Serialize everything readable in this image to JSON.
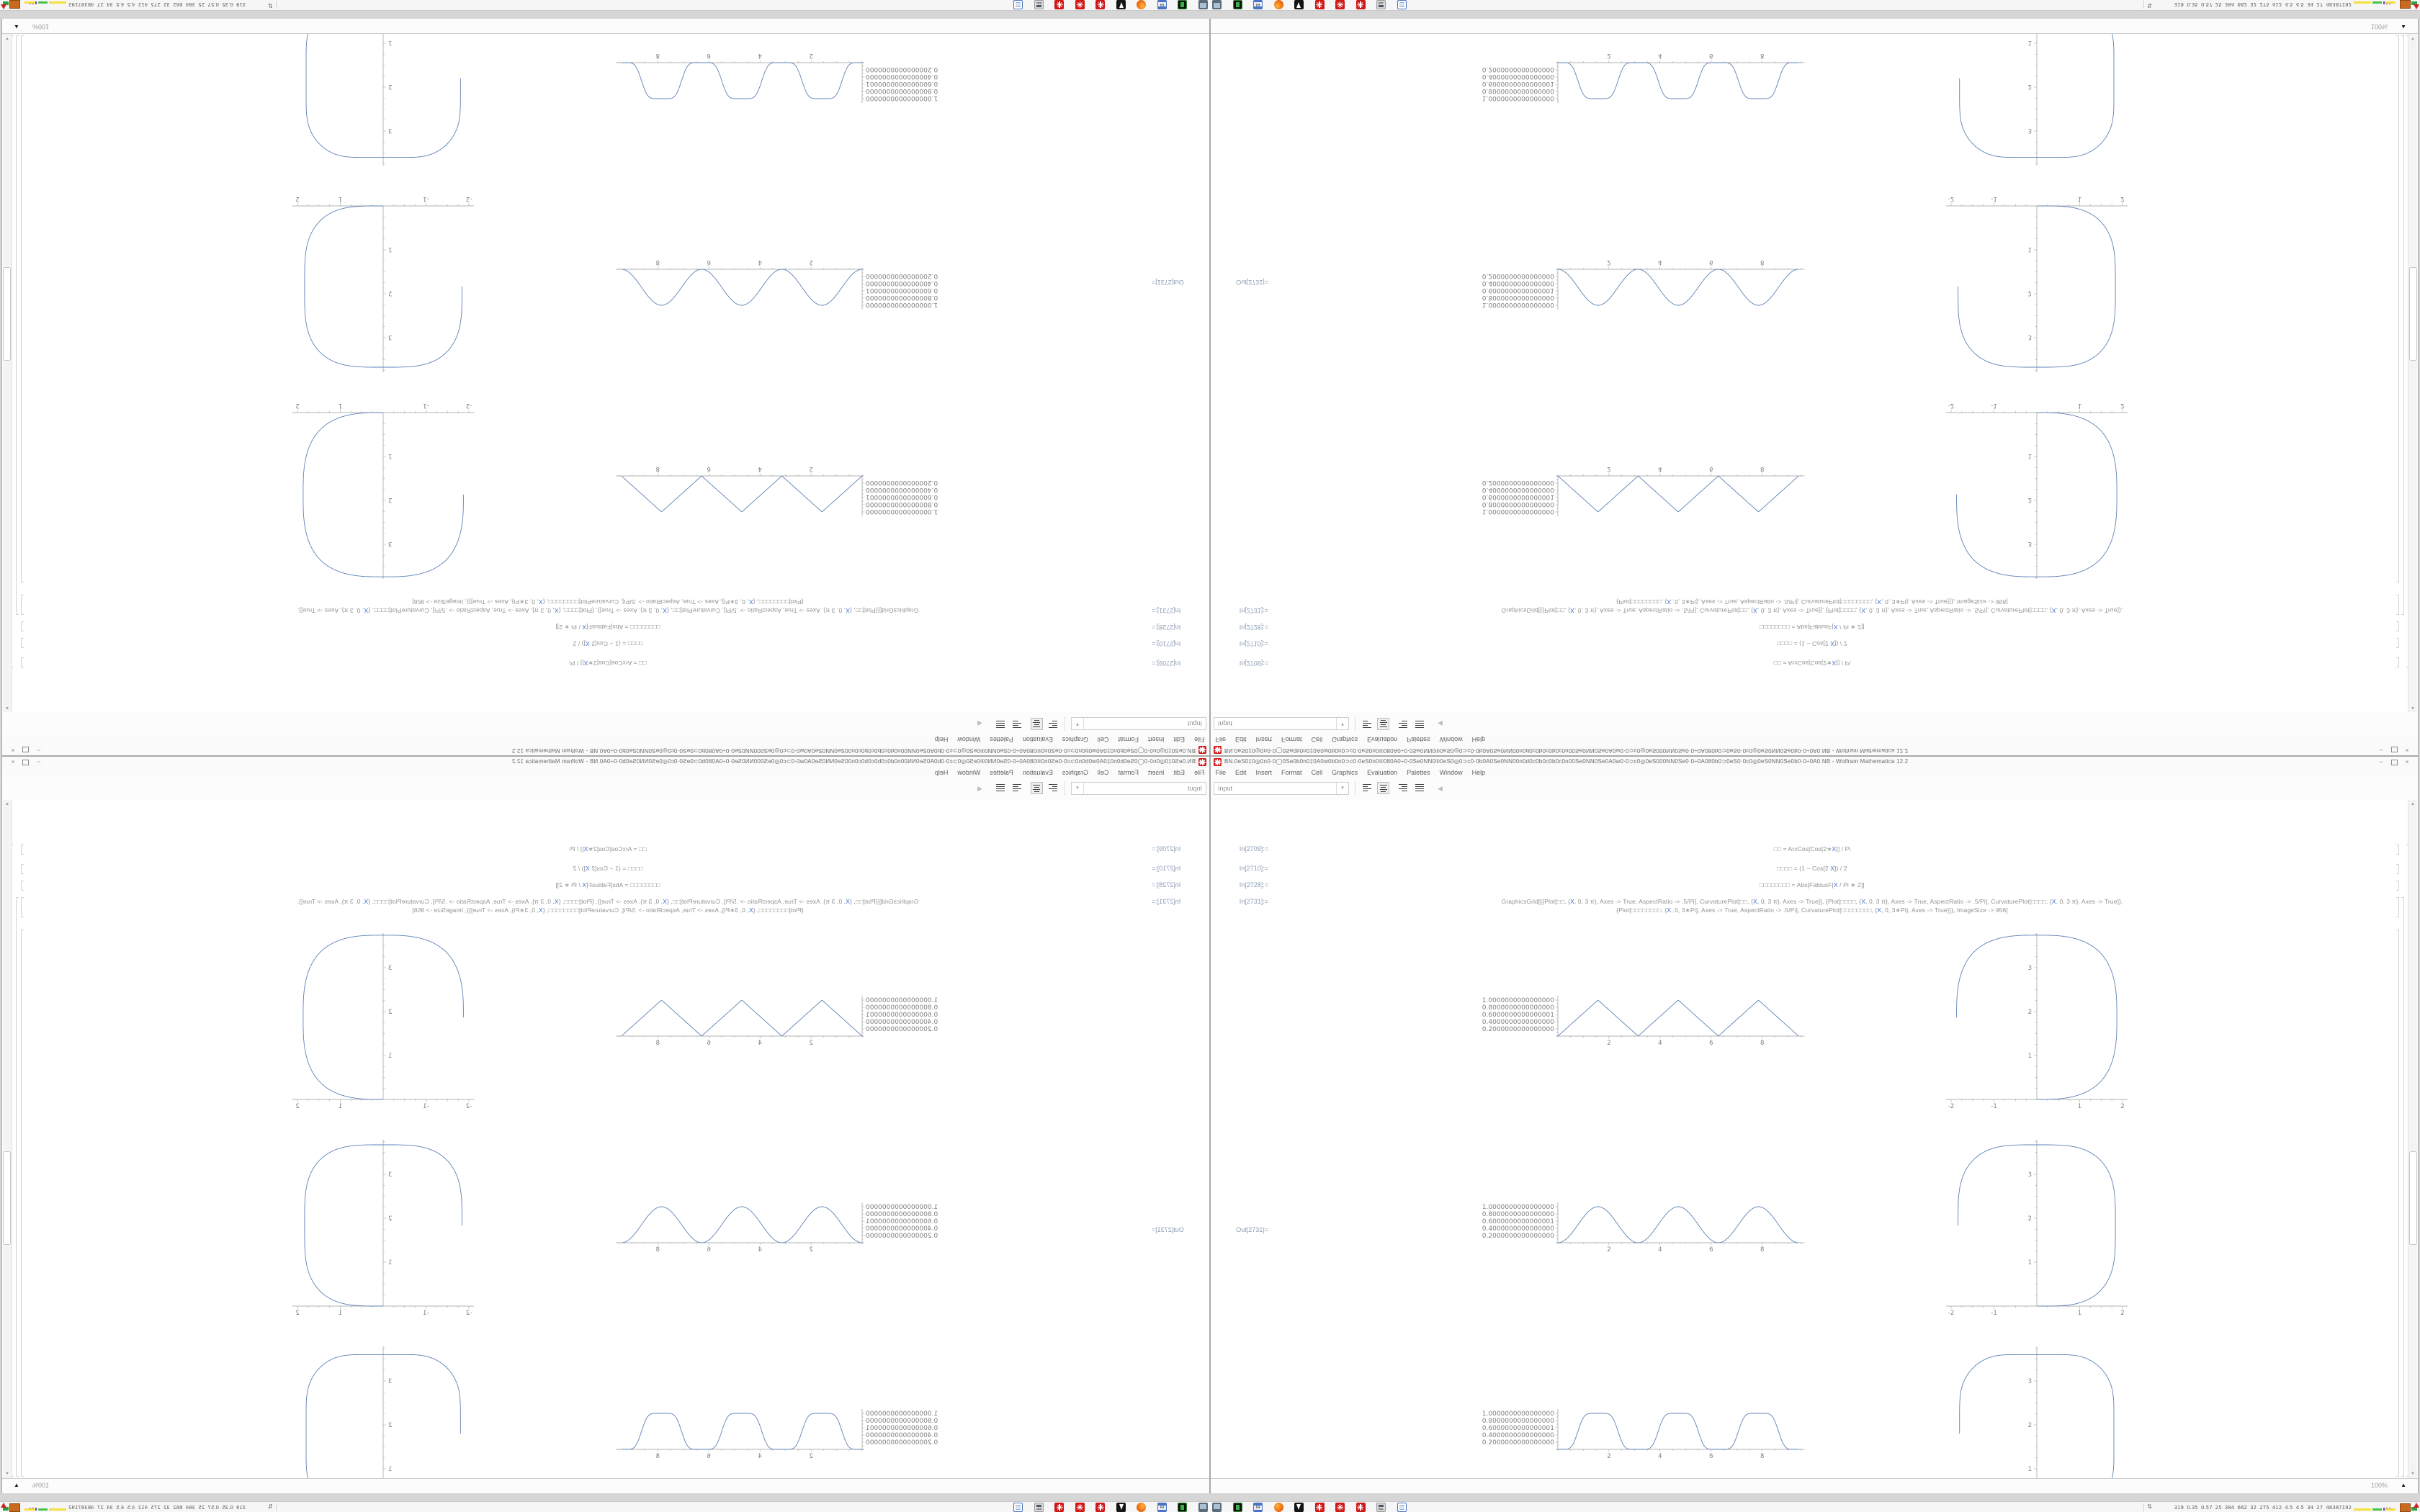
{
  "desktop": {
    "window": {
      "title": "BN.0eS0‡0◎0n0·0◯0Se0b0n0‡0A0w0b0n0⊃c0·0eS0n0®080A0÷0·0Se0NN0®0eS0◎0⊃c0·0b0A0Se0NN00n0d0c0b0c0b0c0n00Se0NN0Se0A0w0·0⊃c0◎0eS000NN0Se0·0÷0A080b0⊃0eS0·0c0◎0eS0NN0Se0b0·0÷0A0.NB - Wolfram Mathematica 12.2",
      "controls": {
        "minimize": "−",
        "maximize": "□",
        "close": "×"
      },
      "menu": [
        "File",
        "Edit",
        "Insert",
        "Format",
        "Cell",
        "Graphics",
        "Evaluation",
        "Palettes",
        "Window",
        "Help"
      ],
      "toolbar": {
        "style_dropdown": "Input",
        "dropdown_arrow": "▾",
        "align_buttons": [
          "align-left",
          "align-center",
          "align-right",
          "align-justify"
        ],
        "selected_align": "align-center",
        "palette_collapse": "◀"
      },
      "scrollbar": {
        "up": "▲",
        "down": "▼"
      },
      "status": {
        "zoom": "100%",
        "magnifier": "▲"
      }
    },
    "notebook": {
      "cells": [
        {
          "label": "In[2709]:=",
          "segments": [
            {
              "t": "□□ = ArcCos[Cos[2∗"
            },
            {
              "t": "X",
              "c": "x"
            },
            {
              "t": "]] / Pi"
            }
          ]
        },
        {
          "label": "In[2710]:=",
          "segments": [
            {
              "t": "□□□□ = (1 − Cos[2 "
            },
            {
              "t": "X",
              "c": "x"
            },
            {
              "t": "]) / 2"
            }
          ]
        },
        {
          "label": "In[2728]:=",
          "segments": [
            {
              "t": "□□□□□□□□ = Abs[FabiusF["
            },
            {
              "t": "X",
              "c": "x"
            },
            {
              "t": " / Pi ∗ 2]]"
            }
          ]
        },
        {
          "label": "In[2731]:=",
          "lines": [
            [
              {
                "t": "GraphicsGrid[{{Plot[□□, {"
              },
              {
                "t": "X",
                "c": "x"
              },
              {
                "t": ", 0, 3 π}, Axes -> True, AspectRatio -> .5/Pi], CurvaturePlot[□□, {"
              },
              {
                "t": "X",
                "c": "x"
              },
              {
                "t": ", 0, 3 π}, Axes -> True]}, {Plot[□□□□, {"
              },
              {
                "t": "X",
                "c": "x"
              },
              {
                "t": ", 0, 3 π}, Axes -> True, AspectRatio -> .5/Pi], CurvaturePlot[□□□□, {"
              },
              {
                "t": "X",
                "c": "x"
              },
              {
                "t": ", 0, 3 π}, Axes -> True]},"
              }
            ],
            [
              {
                "t": "{Plot[□□□□□□□□, {"
              },
              {
                "t": "X",
                "c": "x"
              },
              {
                "t": ", 0, 3∗Pi}, Axes -> True, AspectRatio -> .5/Pi], CurvaturePlot[□□□□□□□□, {"
              },
              {
                "t": "X",
                "c": "x"
              },
              {
                "t": ", 0, 3∗Pi}, Axes -> True]}}, ImageSize -> 956]"
              }
            ]
          ]
        },
        {
          "label": "Out[2731]=",
          "output": "GraphicsGrid 3×2: {Plot, CurvaturePlot} rows at ImageSize 956"
        }
      ]
    },
    "taskbar": {
      "icons": [
        "system-monitor",
        "mobile-device",
        "commodore-64",
        "firefox",
        "inkscape",
        "mathematica",
        "mathematica",
        "mathematica",
        "calculator",
        "word-processor"
      ],
      "tray_glyph": "⇅",
      "system_monitor_text": "319 0.35 0.57 25 384 662 32 275 412 4.5 4.5 34 27 48387192"
    }
  },
  "chart_data": [
    {
      "type": "line",
      "id": "wave-triangle",
      "fn": "triangle",
      "function": "ArcCos[Cos[2 x]]/Pi  (triangle wave)",
      "xlim": [
        0,
        9.4248
      ],
      "ylim": [
        0,
        1
      ],
      "peaks_x": [
        1.5708,
        4.7124,
        7.854
      ],
      "peak_value": 1,
      "zeros_x": [
        0,
        3.1416,
        6.2832,
        9.4248
      ],
      "xticks": [
        "2",
        "4",
        "6",
        "8"
      ],
      "ytick_values": [
        1,
        0.8,
        0.6,
        0.4,
        0.2
      ],
      "ytick_labels": [
        "1.0000000000000000",
        "0.8000000000000000",
        "0.6000000000000001",
        "0.4000000000000000",
        "0.2000000000000000"
      ],
      "color": "#5e81b5"
    },
    {
      "type": "curvature-curve",
      "id": "curvature-triangle",
      "fn": "triangle",
      "function": "CurvaturePlot: curve with curvature ArcCos[Cos[2 s]]/Pi, s ∈ [0, 3 Pi]",
      "start": [
        0,
        0
      ],
      "end": [
        -1.88,
        1.86
      ],
      "top_y": 3.76,
      "right_x": 1.88,
      "total_turn_deg": 270,
      "xticks": [
        "-2",
        "-1",
        "1",
        "2"
      ],
      "yticks": [
        "1",
        "2",
        "3"
      ],
      "xlim": [
        -2.1,
        2.15
      ],
      "ylim": [
        -0.05,
        3.85
      ],
      "color": "#5e81b5"
    },
    {
      "type": "line",
      "id": "wave-sine-squared",
      "fn": "sin2",
      "function": "(1 − Cos[2 x])/2 = Sin[x]^2  (smooth bumps)",
      "xlim": [
        0,
        9.4248
      ],
      "ylim": [
        0,
        1
      ],
      "peaks_x": [
        1.5708,
        4.7124,
        7.854
      ],
      "peak_value": 1,
      "zeros_x": [
        0,
        3.1416,
        6.2832,
        9.4248
      ],
      "xticks": [
        "2",
        "4",
        "6",
        "8"
      ],
      "ytick_values": [
        1,
        0.8,
        0.6,
        0.4,
        0.2
      ],
      "ytick_labels": [
        "1.0000000000000000",
        "0.8000000000000000",
        "0.6000000000000001",
        "0.4000000000000000",
        "0.2000000000000000"
      ],
      "color": "#5e81b5"
    },
    {
      "type": "curvature-curve",
      "id": "curvature-sine-squared",
      "fn": "sin2",
      "function": "CurvaturePlot: curve with curvature Sin[s]^2, s ∈ [0, 3 Pi]",
      "start": [
        0,
        0
      ],
      "end": [
        -1.88,
        1.87
      ],
      "top_y": 3.75,
      "right_x": 1.87,
      "total_turn_deg": 270,
      "xticks": [
        "-2",
        "-1",
        "1",
        "2"
      ],
      "yticks": [
        "1",
        "2",
        "3"
      ],
      "xlim": [
        -2.1,
        2.15
      ],
      "ylim": [
        -0.05,
        3.85
      ],
      "color": "#5e81b5"
    },
    {
      "type": "line",
      "id": "wave-fabius",
      "fn": "fabius",
      "function": "Abs[FabiusF[x/Pi ∗ 2]]  (flat-topped bumps)",
      "xlim": [
        0,
        9.4248
      ],
      "ylim": [
        0,
        1
      ],
      "peaks_x": [
        1.5708,
        4.7124,
        7.854
      ],
      "peak_value": 1,
      "zeros_x": [
        0,
        3.1416,
        6.2832,
        9.4248
      ],
      "xticks": [
        "2",
        "4",
        "6",
        "8"
      ],
      "ytick_values": [
        1,
        0.8,
        0.6,
        0.4,
        0.2
      ],
      "ytick_labels": [
        "1.0000000000000000",
        "0.8000000000000000",
        "0.6000000000000001",
        "0.4000000000000000",
        "0.2000000000000000"
      ],
      "color": "#5e81b5"
    },
    {
      "type": "curvature-curve",
      "id": "curvature-fabius",
      "fn": "fabius",
      "function": "CurvaturePlot: curve with curvature Abs[FabiusF[2 s/Pi]], s ∈ [0, 3 Pi]",
      "start": [
        0,
        0
      ],
      "end": [
        -1.87,
        1.88
      ],
      "top_y": 3.74,
      "right_x": 1.87,
      "total_turn_deg": 270,
      "xticks": [
        "-2",
        "-1",
        "1",
        "2"
      ],
      "yticks": [
        "1",
        "2",
        "3"
      ],
      "xlim": [
        -2.1,
        2.15
      ],
      "ylim": [
        -0.05,
        3.85
      ],
      "color": "#5e81b5"
    }
  ]
}
